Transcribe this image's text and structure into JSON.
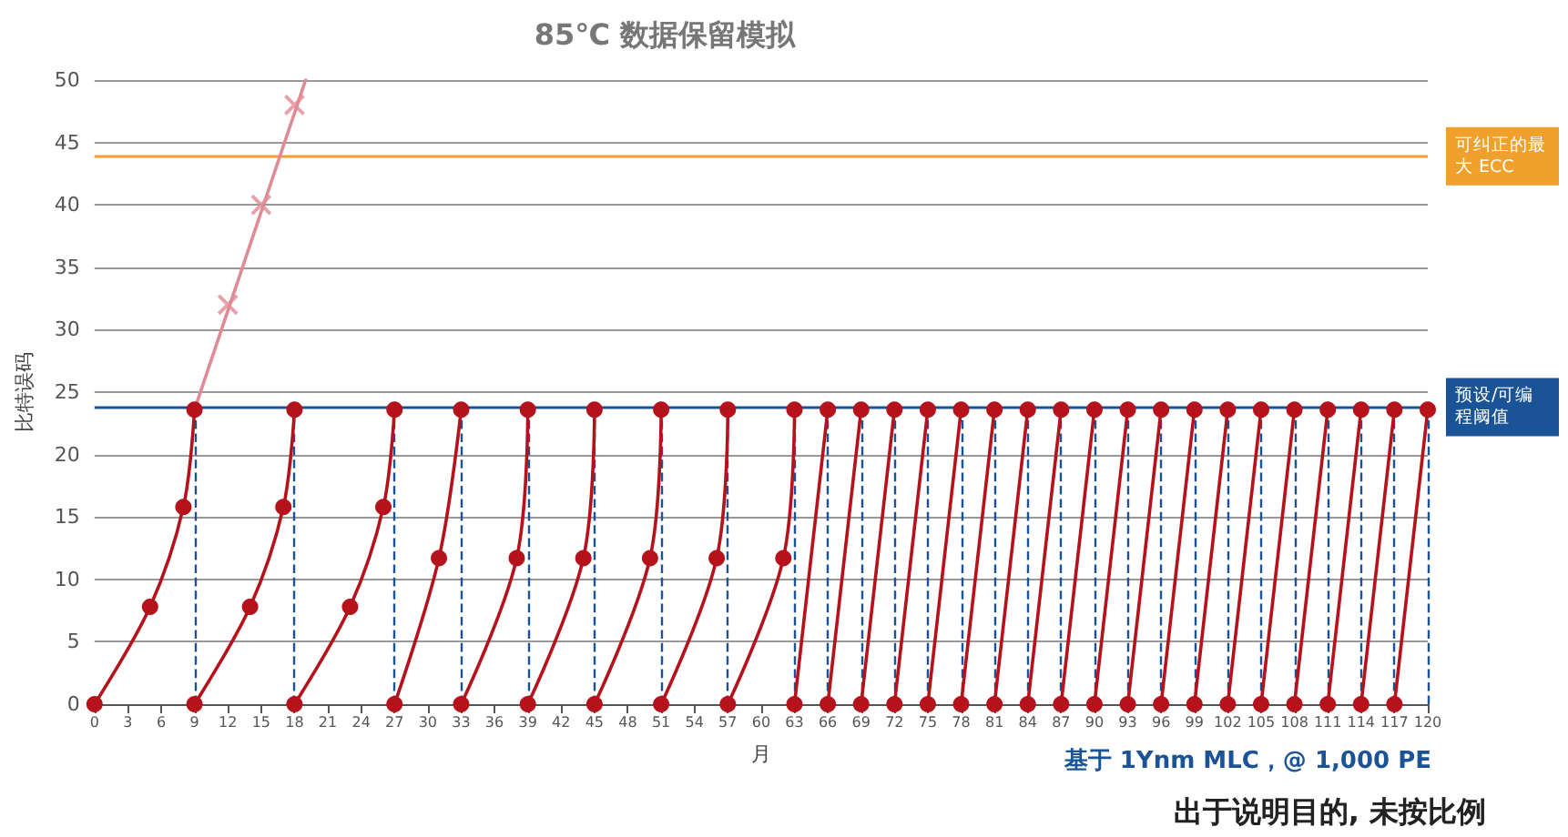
{
  "chart_data": {
    "type": "line",
    "title": "85℃ 数据保留模拟",
    "xlabel": "月",
    "ylabel": "比特误码",
    "xlim": [
      0,
      120
    ],
    "xticks": [
      0,
      3,
      6,
      9,
      12,
      15,
      18,
      21,
      24,
      27,
      30,
      33,
      36,
      39,
      42,
      45,
      48,
      51,
      54,
      57,
      60,
      63,
      66,
      69,
      72,
      75,
      78,
      81,
      84,
      87,
      90,
      93,
      96,
      99,
      102,
      105,
      108,
      111,
      114,
      117,
      120
    ],
    "ylim": [
      0,
      50
    ],
    "yticks": [
      0,
      5,
      10,
      15,
      20,
      25,
      30,
      35,
      40,
      45,
      50
    ],
    "grid": "y",
    "series": [
      {
        "color": "#e08a96",
        "marker": "none",
        "x": [
          9,
          19
        ],
        "values": [
          23.6,
          50
        ]
      },
      {
        "type": "scatter",
        "color": "#e08a96",
        "marker": "cross",
        "x": [
          12,
          15,
          18
        ],
        "values": [
          32,
          40,
          48
        ]
      },
      {
        "color": "#b5121b",
        "marker": "circle",
        "x": [
          0,
          5,
          8,
          9
        ],
        "values": [
          0,
          7.8,
          15.8,
          23.6
        ]
      },
      {
        "color": "#b5121b",
        "marker": "circle",
        "x": [
          9,
          14,
          17,
          18
        ],
        "values": [
          0,
          7.8,
          15.8,
          23.6
        ]
      },
      {
        "color": "#b5121b",
        "marker": "circle",
        "x": [
          18,
          23,
          26,
          27
        ],
        "values": [
          0,
          7.8,
          15.8,
          23.6
        ]
      },
      {
        "color": "#b5121b",
        "marker": "circle",
        "x": [
          27,
          31,
          33
        ],
        "values": [
          0,
          11.7,
          23.6
        ]
      },
      {
        "color": "#b5121b",
        "marker": "circle",
        "x": [
          33,
          38,
          39
        ],
        "values": [
          0,
          11.7,
          23.6
        ]
      },
      {
        "color": "#b5121b",
        "marker": "circle",
        "x": [
          39,
          44,
          45
        ],
        "values": [
          0,
          11.7,
          23.6
        ]
      },
      {
        "color": "#b5121b",
        "marker": "circle",
        "x": [
          45,
          50,
          51
        ],
        "values": [
          0,
          11.7,
          23.6
        ]
      },
      {
        "color": "#b5121b",
        "marker": "circle",
        "x": [
          51,
          56,
          57
        ],
        "values": [
          0,
          11.7,
          23.6
        ]
      },
      {
        "color": "#b5121b",
        "marker": "circle",
        "x": [
          57,
          62,
          63
        ],
        "values": [
          0,
          11.7,
          23.6
        ]
      },
      {
        "color": "#b5121b",
        "marker": "circle",
        "x": [
          63,
          66
        ],
        "values": [
          0,
          23.6
        ]
      },
      {
        "color": "#b5121b",
        "marker": "circle",
        "x": [
          66,
          69
        ],
        "values": [
          0,
          23.6
        ]
      },
      {
        "color": "#b5121b",
        "marker": "circle",
        "x": [
          69,
          72
        ],
        "values": [
          0,
          23.6
        ]
      },
      {
        "color": "#b5121b",
        "marker": "circle",
        "x": [
          72,
          75
        ],
        "values": [
          0,
          23.6
        ]
      },
      {
        "color": "#b5121b",
        "marker": "circle",
        "x": [
          75,
          78
        ],
        "values": [
          0,
          23.6
        ]
      },
      {
        "color": "#b5121b",
        "marker": "circle",
        "x": [
          78,
          81
        ],
        "values": [
          0,
          23.6
        ]
      },
      {
        "color": "#b5121b",
        "marker": "circle",
        "x": [
          81,
          84
        ],
        "values": [
          0,
          23.6
        ]
      },
      {
        "color": "#b5121b",
        "marker": "circle",
        "x": [
          84,
          87
        ],
        "values": [
          0,
          23.6
        ]
      },
      {
        "color": "#b5121b",
        "marker": "circle",
        "x": [
          87,
          90
        ],
        "values": [
          0,
          23.6
        ]
      },
      {
        "color": "#b5121b",
        "marker": "circle",
        "x": [
          90,
          93
        ],
        "values": [
          0,
          23.6
        ]
      },
      {
        "color": "#b5121b",
        "marker": "circle",
        "x": [
          93,
          96
        ],
        "values": [
          0,
          23.6
        ]
      },
      {
        "color": "#b5121b",
        "marker": "circle",
        "x": [
          96,
          99
        ],
        "values": [
          0,
          23.6
        ]
      },
      {
        "color": "#b5121b",
        "marker": "circle",
        "x": [
          99,
          102
        ],
        "values": [
          0,
          23.6
        ]
      },
      {
        "color": "#b5121b",
        "marker": "circle",
        "x": [
          102,
          105
        ],
        "values": [
          0,
          23.6
        ]
      },
      {
        "color": "#b5121b",
        "marker": "circle",
        "x": [
          105,
          108
        ],
        "values": [
          0,
          23.6
        ]
      },
      {
        "color": "#b5121b",
        "marker": "circle",
        "x": [
          108,
          111
        ],
        "values": [
          0,
          23.6
        ]
      },
      {
        "color": "#b5121b",
        "marker": "circle",
        "x": [
          111,
          114
        ],
        "values": [
          0,
          23.6
        ]
      },
      {
        "color": "#b5121b",
        "marker": "circle",
        "x": [
          114,
          117
        ],
        "values": [
          0,
          23.6
        ]
      },
      {
        "color": "#b5121b",
        "marker": "circle",
        "x": [
          117,
          120
        ],
        "values": [
          0,
          23.6
        ]
      }
    ],
    "ref_lines": [
      {
        "axis": "y",
        "value": 43.9,
        "label": "可纠正的最大 ECC",
        "color": "#f0a02c"
      },
      {
        "axis": "y",
        "value": 23.8,
        "label": "预设/可编程阈值",
        "color": "#1a5496"
      },
      {
        "axis": "x",
        "value": 9,
        "color": "#1a5496",
        "line_style": "dashed"
      },
      {
        "axis": "x",
        "value": 18,
        "color": "#1a5496",
        "line_style": "dashed"
      },
      {
        "axis": "x",
        "value": 27,
        "color": "#1a5496",
        "line_style": "dashed"
      },
      {
        "axis": "x",
        "value": 33,
        "color": "#1a5496",
        "line_style": "dashed"
      },
      {
        "axis": "x",
        "value": 39,
        "color": "#1a5496",
        "line_style": "dashed"
      },
      {
        "axis": "x",
        "value": 45,
        "color": "#1a5496",
        "line_style": "dashed"
      },
      {
        "axis": "x",
        "value": 51,
        "color": "#1a5496",
        "line_style": "dashed"
      },
      {
        "axis": "x",
        "value": 57,
        "color": "#1a5496",
        "line_style": "dashed"
      },
      {
        "axis": "x",
        "value": 63,
        "color": "#1a5496",
        "line_style": "dashed"
      },
      {
        "axis": "x",
        "value": 66,
        "color": "#1a5496",
        "line_style": "dashed"
      },
      {
        "axis": "x",
        "value": 69,
        "color": "#1a5496",
        "line_style": "dashed"
      },
      {
        "axis": "x",
        "value": 72,
        "color": "#1a5496",
        "line_style": "dashed"
      },
      {
        "axis": "x",
        "value": 75,
        "color": "#1a5496",
        "line_style": "dashed"
      },
      {
        "axis": "x",
        "value": 78,
        "color": "#1a5496",
        "line_style": "dashed"
      },
      {
        "axis": "x",
        "value": 81,
        "color": "#1a5496",
        "line_style": "dashed"
      },
      {
        "axis": "x",
        "value": 84,
        "color": "#1a5496",
        "line_style": "dashed"
      },
      {
        "axis": "x",
        "value": 87,
        "color": "#1a5496",
        "line_style": "dashed"
      },
      {
        "axis": "x",
        "value": 90,
        "color": "#1a5496",
        "line_style": "dashed"
      },
      {
        "axis": "x",
        "value": 93,
        "color": "#1a5496",
        "line_style": "dashed"
      },
      {
        "axis": "x",
        "value": 96,
        "color": "#1a5496",
        "line_style": "dashed"
      },
      {
        "axis": "x",
        "value": 99,
        "color": "#1a5496",
        "line_style": "dashed"
      },
      {
        "axis": "x",
        "value": 102,
        "color": "#1a5496",
        "line_style": "dashed"
      },
      {
        "axis": "x",
        "value": 105,
        "color": "#1a5496",
        "line_style": "dashed"
      },
      {
        "axis": "x",
        "value": 108,
        "color": "#1a5496",
        "line_style": "dashed"
      },
      {
        "axis": "x",
        "value": 111,
        "color": "#1a5496",
        "line_style": "dashed"
      },
      {
        "axis": "x",
        "value": 114,
        "color": "#1a5496",
        "line_style": "dashed"
      },
      {
        "axis": "x",
        "value": 117,
        "color": "#1a5496",
        "line_style": "dashed"
      },
      {
        "axis": "x",
        "value": 120,
        "color": "#1a5496",
        "line_style": "dashed"
      }
    ],
    "annotations": [
      "基于 1Ynm MLC，@ 1,000 PE",
      "出于说明目的, 未按比例"
    ]
  }
}
